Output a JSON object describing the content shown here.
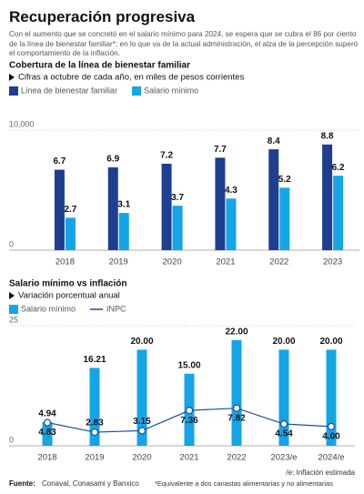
{
  "header": {
    "title": "Recuperación progresiva",
    "text": "Con el aumento que se concretó en el salario mínimo para 2024, se espera que se cubra el 86 por ciento de la línea de bienestar familiar*; en lo que va de la actual administración, el alza de la percepción superó el comportamiento de la inflación."
  },
  "chart_data": [
    {
      "type": "bar",
      "title": "Cobertura de la línea de bienestar familiar",
      "subtitle": "Cifras a octubre de cada año, en miles de pesos corrientes",
      "categories": [
        "2018",
        "2019",
        "2020",
        "2021",
        "2022",
        "2023"
      ],
      "series": [
        {
          "name": "Línea de bienestar familiar",
          "color": "#1e3f8f",
          "values": [
            6700,
            6900,
            7200,
            7700,
            8400,
            8800
          ],
          "value_labels": [
            "6.7",
            "6.9",
            "7.2",
            "7.7",
            "8.4",
            "8.8"
          ]
        },
        {
          "name": "Salario mínimo",
          "color": "#14a5e6",
          "values": [
            2700,
            3100,
            3700,
            4300,
            5200,
            6200
          ],
          "value_labels": [
            "2.7",
            "3.1",
            "3.7",
            "4.3",
            "5.2",
            "6.2"
          ]
        }
      ],
      "ylim": [
        0,
        10000
      ],
      "yticks": [
        0,
        {
          "value": 10000,
          "label": "10,000"
        }
      ],
      "grid": true
    },
    {
      "type": "combo",
      "title": "Salario mínimo vs inflación",
      "subtitle": "Variación porcentual anual",
      "categories": [
        "2018",
        "2019",
        "2020",
        "2021",
        "2022",
        "2023/e",
        "2024/e"
      ],
      "series": [
        {
          "name": "Salario mínimo",
          "type": "bar",
          "color": "#14a5e6",
          "values": [
            4.94,
            16.21,
            20,
            15,
            22,
            20,
            20
          ],
          "value_labels": [
            "4.94",
            "16.21",
            "20.00",
            "15.00",
            "22.00",
            "20.00",
            "20.00"
          ]
        },
        {
          "name": "INPC",
          "type": "line",
          "color": "#1f4e9c",
          "values": [
            4.83,
            2.83,
            3.15,
            7.36,
            7.82,
            4.54,
            4
          ],
          "value_labels": [
            "4.83",
            "2.83",
            "3.15",
            "7.36",
            "7.82",
            "4.54",
            "4.00"
          ]
        }
      ],
      "ylim": [
        0,
        25
      ],
      "yticks": [
        0,
        25
      ],
      "grid": true,
      "note": "/e: Inflación estimada"
    }
  ],
  "footer": {
    "source_label": "Fuente:",
    "source": "Conaval, Conasami y Banxico",
    "note": "*Equivalente a dos canastas alimentarias y no alimentarias"
  }
}
